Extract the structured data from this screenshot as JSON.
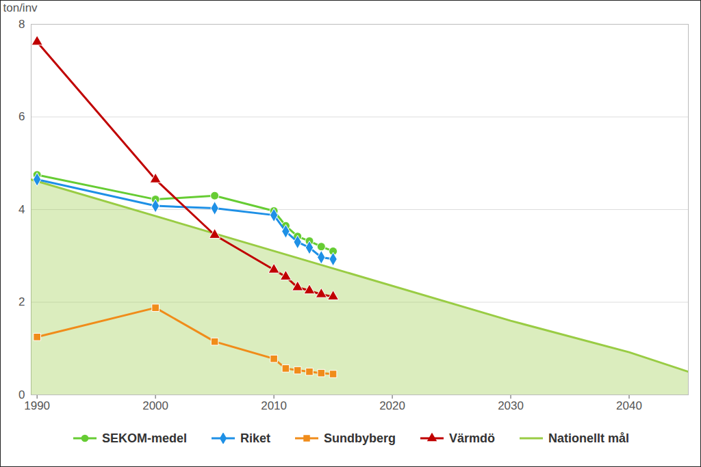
{
  "chart_data": {
    "type": "line",
    "ylabel": "ton/inv",
    "xlim": [
      1989.5,
      2045
    ],
    "xticks": [
      1990,
      2000,
      2010,
      2020,
      2030,
      2040
    ],
    "ylim": [
      0,
      8
    ],
    "yticks": [
      0,
      2,
      4,
      6,
      8
    ],
    "grid": true,
    "legend": "bottom",
    "series": [
      {
        "name": "SEKOM-medel",
        "color": "#66cc33",
        "marker": "circle",
        "x": [
          1990,
          2000,
          2005,
          2010,
          2011,
          2012,
          2013,
          2014,
          2015
        ],
        "values": [
          4.75,
          4.22,
          4.3,
          3.97,
          3.65,
          3.42,
          3.32,
          3.2,
          3.1
        ]
      },
      {
        "name": "Riket",
        "color": "#1e90e6",
        "marker": "diamond",
        "x": [
          1990,
          2000,
          2005,
          2010,
          2011,
          2012,
          2013,
          2014,
          2015
        ],
        "values": [
          4.65,
          4.08,
          4.03,
          3.88,
          3.53,
          3.3,
          3.18,
          2.97,
          2.93
        ]
      },
      {
        "name": "Sundbyberg",
        "color": "#f08c1a",
        "marker": "square",
        "x": [
          1990,
          2000,
          2005,
          2010,
          2011,
          2012,
          2013,
          2014,
          2015
        ],
        "values": [
          1.25,
          1.88,
          1.15,
          0.78,
          0.57,
          0.53,
          0.5,
          0.47,
          0.45
        ]
      },
      {
        "name": "Värmdö",
        "color": "#c00000",
        "marker": "triangle",
        "x": [
          1990,
          2000,
          2005,
          2010,
          2011,
          2012,
          2013,
          2014,
          2015
        ],
        "values": [
          7.62,
          4.65,
          3.45,
          2.7,
          2.55,
          2.32,
          2.25,
          2.17,
          2.12
        ]
      },
      {
        "name": "Nationellt mål",
        "color": "#99cc44",
        "type": "area",
        "marker": "none",
        "x": [
          1989.5,
          2030,
          2040,
          2045
        ],
        "values": [
          4.65,
          1.6,
          0.92,
          0.5
        ]
      }
    ]
  }
}
